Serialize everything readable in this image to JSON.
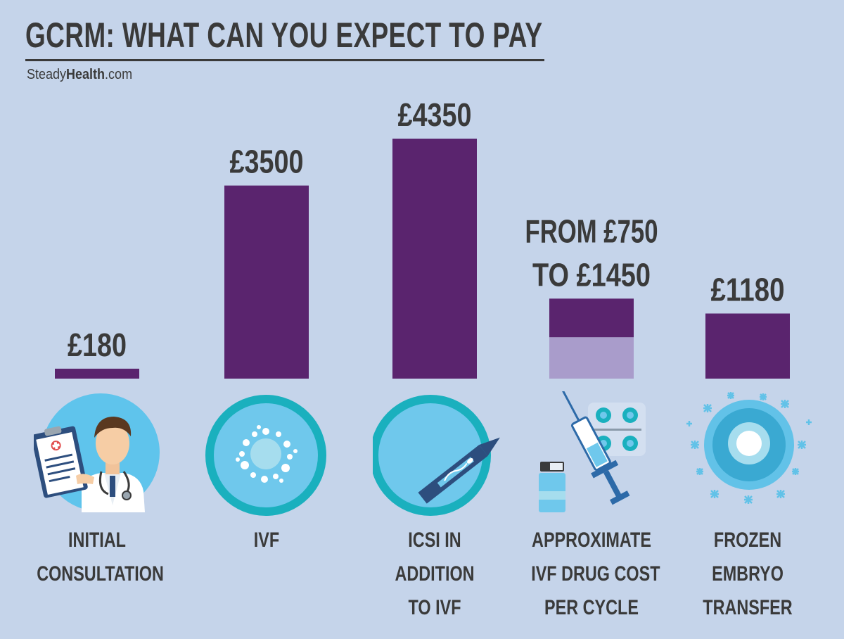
{
  "header": {
    "title": "GCRM: WHAT CAN YOU EXPECT TO PAY",
    "brand_regular": "Steady",
    "brand_bold": "Health",
    "brand_suffix": ".com"
  },
  "chart_data": {
    "type": "bar",
    "title": "GCRM: WHAT CAN YOU EXPECT TO PAY",
    "currency": "£",
    "categories": [
      [
        "INITIAL",
        "CONSULTATION"
      ],
      [
        "IVF"
      ],
      [
        "ICSI IN",
        "ADDITION",
        "TO IVF"
      ],
      [
        "APPROXIMATE",
        "IVF DRUG COST",
        "PER CYCLE"
      ],
      [
        "FROZEN",
        "EMBRYO",
        "TRANSFER"
      ]
    ],
    "values": [
      180,
      3500,
      4350,
      1450,
      1180
    ],
    "range_low": [
      null,
      null,
      null,
      750,
      null
    ],
    "value_labels": [
      [
        "£180"
      ],
      [
        "£3500"
      ],
      [
        "£4350"
      ],
      [
        "FROM £750",
        "TO £1450"
      ],
      [
        "£1180"
      ]
    ],
    "ylim": [
      0,
      4350
    ],
    "grid": false,
    "bar_color": "#5a246e",
    "range_color": "#a99ccb"
  },
  "icons": [
    "doctor-clipboard-icon",
    "egg-cell-icon",
    "icsi-needle-icon",
    "syringe-pills-icon",
    "frozen-embryo-icon"
  ],
  "colors": {
    "background": "#c5d4ea",
    "text": "#3a3a3a",
    "teal": "#1ab0be",
    "light_blue": "#6fc8ec"
  }
}
